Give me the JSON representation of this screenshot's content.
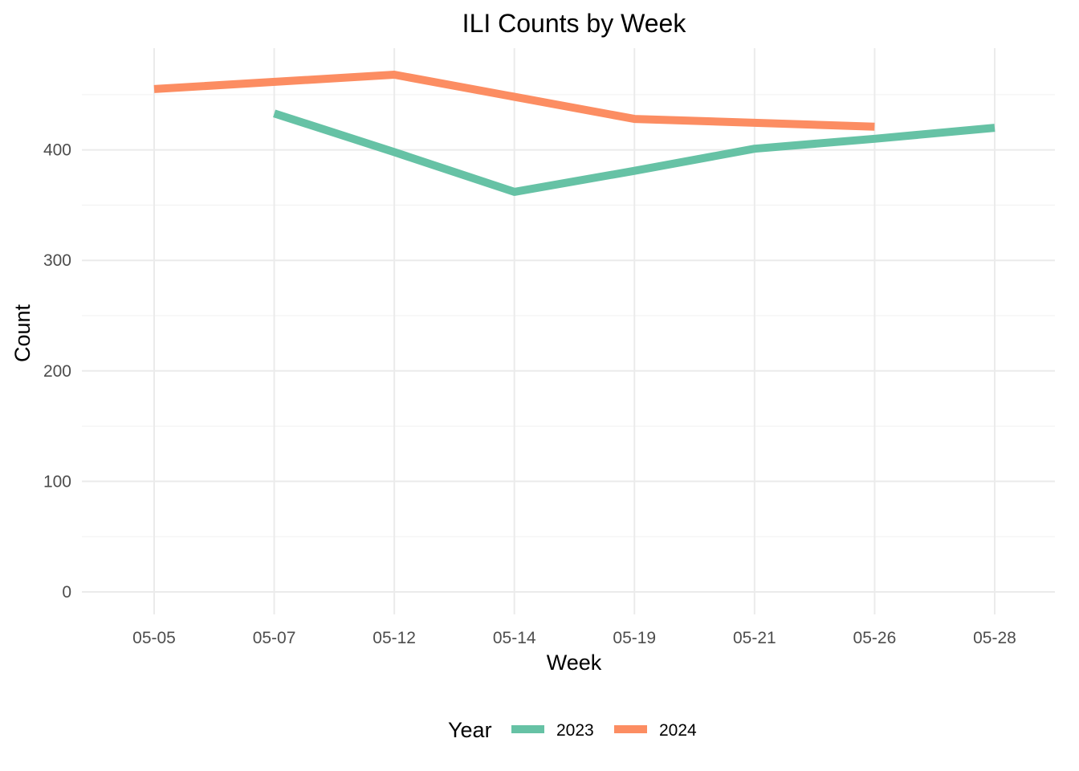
{
  "chart_data": {
    "type": "line",
    "title": "ILI Counts by Week",
    "xlabel": "Week",
    "ylabel": "Count",
    "categories": [
      "05-05",
      "05-07",
      "05-12",
      "05-14",
      "05-19",
      "05-21",
      "05-26",
      "05-28"
    ],
    "yticks": [
      0,
      100,
      200,
      300,
      400
    ],
    "ylim": [
      -20,
      490
    ],
    "grid": true,
    "legend": {
      "title": "Year",
      "position": "bottom"
    },
    "series": [
      {
        "name": "2023",
        "color": "#66c2a5",
        "points": [
          {
            "x": "05-07",
            "y": 433
          },
          {
            "x": "05-12",
            "y": 398
          },
          {
            "x": "05-14",
            "y": 362
          },
          {
            "x": "05-19",
            "y": 381
          },
          {
            "x": "05-21",
            "y": 401
          },
          {
            "x": "05-26",
            "y": 410
          },
          {
            "x": "05-28",
            "y": 420
          }
        ]
      },
      {
        "name": "2024",
        "color": "#fc8d62",
        "points": [
          {
            "x": "05-05",
            "y": 455
          },
          {
            "x": "05-12",
            "y": 468
          },
          {
            "x": "05-19",
            "y": 428
          },
          {
            "x": "05-26",
            "y": 421
          }
        ]
      }
    ]
  }
}
